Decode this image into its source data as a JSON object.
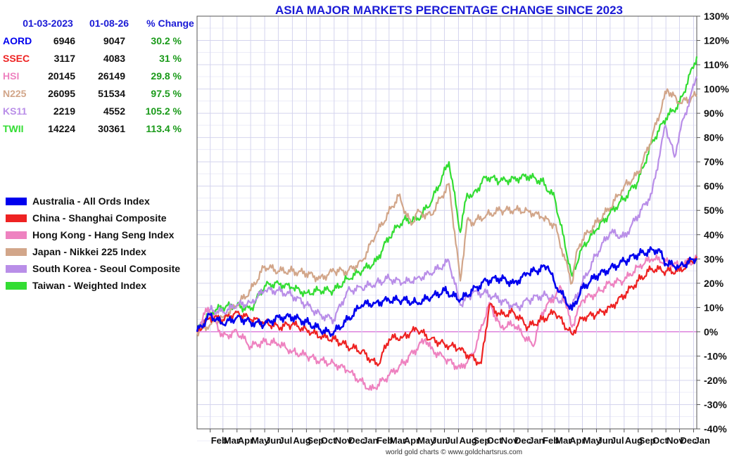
{
  "chart_data": {
    "type": "line",
    "title": "ASIA MAJOR MARKETS PERCENTAGE CHANGE SINCE 2023",
    "credit": "world gold charts © www.goldchartsrus.com",
    "xlabel": "",
    "ylabel": "",
    "ylim": [
      -40,
      130
    ],
    "y_ticks": [
      130,
      120,
      110,
      100,
      90,
      80,
      70,
      60,
      50,
      40,
      30,
      20,
      10,
      0,
      -10,
      -20,
      -30,
      -40
    ],
    "y_tick_labels": [
      "130%",
      "120%",
      "110%",
      "100%",
      "90%",
      "80%",
      "70%",
      "60%",
      "50%",
      "40%",
      "30%",
      "20%",
      "10%",
      "0%",
      "-10%",
      "-20%",
      "-30%",
      "-40%"
    ],
    "x_start": "2023-01-03",
    "x_end": "2026-01-08",
    "x_tick_labels": [
      "Feb",
      "Mar",
      "Apr",
      "May",
      "Jun",
      "Jul",
      "Aug",
      "Sep",
      "Oct",
      "Nov",
      "Dec",
      "Jan",
      "Feb",
      "Mar",
      "Apr",
      "May",
      "Jun",
      "Jul",
      "Aug",
      "Sep",
      "Oct",
      "Nov",
      "Dec",
      "Jan",
      "Feb",
      "Mar",
      "Apr",
      "May",
      "Jun",
      "Jul",
      "Aug",
      "Sep",
      "Oct",
      "Nov",
      "Dec",
      "Jan"
    ],
    "x_tick_dates": [
      "2023-02-01",
      "2023-03-01",
      "2023-04-01",
      "2023-05-01",
      "2023-06-01",
      "2023-07-01",
      "2023-08-01",
      "2023-09-01",
      "2023-10-01",
      "2023-11-01",
      "2023-12-01",
      "2024-01-01",
      "2024-02-01",
      "2024-03-01",
      "2024-04-01",
      "2024-05-01",
      "2024-06-01",
      "2024-07-01",
      "2024-08-01",
      "2024-09-01",
      "2024-10-01",
      "2024-11-01",
      "2024-12-01",
      "2025-01-01",
      "2025-02-01",
      "2025-03-01",
      "2025-04-01",
      "2025-05-01",
      "2025-06-01",
      "2025-07-01",
      "2025-08-01",
      "2025-09-01",
      "2025-10-01",
      "2025-11-01",
      "2025-12-01",
      "2026-01-01"
    ],
    "grid": true,
    "legend_position": "left",
    "table": {
      "headers": [
        "01-03-2023",
        "01-08-26",
        "% Change"
      ],
      "rows": [
        {
          "code": "AORD",
          "start": "6946",
          "end": "9047",
          "change": "30.2 %",
          "color": "#0000ee"
        },
        {
          "code": "SSEC",
          "start": "3117",
          "end": "4083",
          "change": "31 %",
          "color": "#ee2222"
        },
        {
          "code": "HSI",
          "start": "20145",
          "end": "26149",
          "change": "29.8 %",
          "color": "#ee82c0"
        },
        {
          "code": "N225",
          "start": "26095",
          "end": "51534",
          "change": "97.5 %",
          "color": "#d2a68a"
        },
        {
          "code": "KS11",
          "start": "2219",
          "end": "4552",
          "change": "105.2 %",
          "color": "#b98ee8"
        },
        {
          "code": "TWII",
          "start": "14224",
          "end": "30361",
          "change": "113.4 %",
          "color": "#33dd33"
        }
      ]
    },
    "series": [
      {
        "name": "Australia - All Ords Index",
        "color": "#0000ee",
        "x": [
          "2023-01-03",
          "2023-02-01",
          "2023-03-01",
          "2023-04-01",
          "2023-05-01",
          "2023-06-01",
          "2023-07-01",
          "2023-08-01",
          "2023-09-01",
          "2023-10-01",
          "2023-10-27",
          "2023-12-01",
          "2024-01-01",
          "2024-02-01",
          "2024-03-01",
          "2024-04-01",
          "2024-05-01",
          "2024-06-01",
          "2024-07-01",
          "2024-08-05",
          "2024-09-01",
          "2024-10-01",
          "2024-11-01",
          "2024-12-01",
          "2025-01-01",
          "2025-02-14",
          "2025-03-01",
          "2025-04-08",
          "2025-05-01",
          "2025-06-01",
          "2025-07-01",
          "2025-08-01",
          "2025-09-01",
          "2025-10-15",
          "2025-11-01",
          "2025-12-01",
          "2026-01-08"
        ],
        "values": [
          0,
          7,
          3,
          6,
          4,
          3,
          6,
          6,
          4,
          1,
          -1,
          5,
          11,
          12,
          13,
          13,
          12,
          14,
          17,
          13,
          17,
          21,
          22,
          20,
          24,
          27,
          20,
          9,
          18,
          23,
          26,
          29,
          32,
          34,
          28,
          27,
          30.2
        ]
      },
      {
        "name": "China - Shanghai Composite",
        "color": "#ee2222",
        "x": [
          "2023-01-03",
          "2023-02-01",
          "2023-03-01",
          "2023-04-01",
          "2023-05-01",
          "2023-06-01",
          "2023-07-01",
          "2023-08-01",
          "2023-09-01",
          "2023-10-01",
          "2023-11-01",
          "2023-12-01",
          "2024-01-01",
          "2024-02-05",
          "2024-03-01",
          "2024-04-01",
          "2024-05-01",
          "2024-06-01",
          "2024-07-01",
          "2024-08-01",
          "2024-09-20",
          "2024-10-08",
          "2024-11-01",
          "2024-12-01",
          "2025-01-01",
          "2025-02-01",
          "2025-03-01",
          "2025-04-08",
          "2025-05-01",
          "2025-06-01",
          "2025-07-01",
          "2025-08-01",
          "2025-09-01",
          "2025-10-01",
          "2025-11-01",
          "2025-12-01",
          "2026-01-08"
        ],
        "values": [
          0,
          6,
          5,
          8,
          5,
          4,
          2,
          3,
          1,
          -2,
          -3,
          -6,
          -8,
          -14,
          -3,
          -2,
          1,
          -3,
          -5,
          -7,
          -13,
          11,
          7,
          8,
          2,
          5,
          8,
          -1,
          6,
          7,
          10,
          15,
          21,
          26,
          25,
          25,
          31
        ]
      },
      {
        "name": "Hong Kong - Hang Seng Index",
        "color": "#ee82c0",
        "x": [
          "2023-01-03",
          "2023-01-27",
          "2023-03-01",
          "2023-04-01",
          "2023-05-01",
          "2023-06-01",
          "2023-07-01",
          "2023-08-01",
          "2023-09-01",
          "2023-10-01",
          "2023-11-01",
          "2023-12-01",
          "2024-01-22",
          "2024-03-01",
          "2024-04-01",
          "2024-05-20",
          "2024-06-01",
          "2024-07-01",
          "2024-08-05",
          "2024-09-01",
          "2024-10-08",
          "2024-11-01",
          "2024-12-01",
          "2025-01-13",
          "2025-02-01",
          "2025-03-15",
          "2025-04-08",
          "2025-05-01",
          "2025-06-01",
          "2025-07-01",
          "2025-08-01",
          "2025-09-01",
          "2025-10-01",
          "2025-11-01",
          "2025-12-01",
          "2026-01-08"
        ],
        "values": [
          0,
          10,
          -2,
          0,
          -6,
          -4,
          -5,
          -8,
          -10,
          -12,
          -13,
          -16,
          -24,
          -18,
          -13,
          -3,
          -7,
          -11,
          -15,
          -10,
          12,
          2,
          3,
          -6,
          8,
          18,
          2,
          13,
          16,
          20,
          21,
          27,
          30,
          29,
          27,
          29.8
        ]
      },
      {
        "name": "Japan - Nikkei 225 Index",
        "color": "#d2a68a",
        "x": [
          "2023-01-03",
          "2023-02-01",
          "2023-03-01",
          "2023-04-01",
          "2023-05-01",
          "2023-06-01",
          "2023-07-01",
          "2023-08-01",
          "2023-09-01",
          "2023-10-01",
          "2023-11-01",
          "2023-12-01",
          "2024-01-01",
          "2024-02-01",
          "2024-03-22",
          "2024-04-19",
          "2024-05-01",
          "2024-06-01",
          "2024-07-11",
          "2024-08-05",
          "2024-08-20",
          "2024-09-01",
          "2024-10-01",
          "2024-11-01",
          "2024-12-01",
          "2025-01-01",
          "2025-02-01",
          "2025-03-01",
          "2025-04-08",
          "2025-04-20",
          "2025-05-01",
          "2025-06-01",
          "2025-07-01",
          "2025-08-01",
          "2025-09-01",
          "2025-10-01",
          "2025-11-04",
          "2025-12-01",
          "2026-01-08"
        ],
        "values": [
          0,
          3,
          6,
          11,
          17,
          27,
          25,
          25,
          24,
          22,
          25,
          25,
          29,
          40,
          56,
          44,
          49,
          48,
          61,
          21,
          46,
          45,
          48,
          50,
          50,
          50,
          47,
          44,
          20,
          34,
          38,
          45,
          51,
          60,
          65,
          80,
          100,
          94,
          97.5
        ]
      },
      {
        "name": "South Korea - Seoul Composite",
        "color": "#b98ee8",
        "x": [
          "2023-01-03",
          "2023-02-01",
          "2023-03-01",
          "2023-04-01",
          "2023-05-01",
          "2023-06-01",
          "2023-07-01",
          "2023-08-01",
          "2023-09-01",
          "2023-10-01",
          "2023-10-31",
          "2023-12-01",
          "2024-01-01",
          "2024-02-01",
          "2024-03-01",
          "2024-04-01",
          "2024-05-01",
          "2024-06-01",
          "2024-07-11",
          "2024-08-05",
          "2024-09-01",
          "2024-10-01",
          "2024-11-01",
          "2024-12-09",
          "2025-01-01",
          "2025-02-01",
          "2025-03-01",
          "2025-04-09",
          "2025-05-01",
          "2025-06-01",
          "2025-07-01",
          "2025-08-01",
          "2025-09-01",
          "2025-10-01",
          "2025-10-31",
          "2025-11-20",
          "2025-12-01",
          "2026-01-08"
        ],
        "values": [
          0,
          9,
          8,
          11,
          12,
          17,
          17,
          15,
          11,
          7,
          5,
          17,
          18,
          20,
          22,
          20,
          22,
          24,
          29,
          11,
          16,
          16,
          13,
          10,
          13,
          15,
          14,
          11,
          20,
          32,
          41,
          39,
          48,
          57,
          85,
          72,
          82,
          105.2
        ]
      },
      {
        "name": "Taiwan - Weighted Index",
        "color": "#33dd33",
        "x": [
          "2023-01-03",
          "2023-02-01",
          "2023-03-01",
          "2023-04-01",
          "2023-05-01",
          "2023-06-01",
          "2023-07-01",
          "2023-08-01",
          "2023-09-01",
          "2023-10-01",
          "2023-11-01",
          "2023-12-01",
          "2024-01-01",
          "2024-02-01",
          "2024-03-01",
          "2024-04-01",
          "2024-05-01",
          "2024-06-01",
          "2024-07-11",
          "2024-08-05",
          "2024-08-20",
          "2024-09-01",
          "2024-10-01",
          "2024-11-01",
          "2024-12-01",
          "2025-01-01",
          "2025-02-01",
          "2025-03-01",
          "2025-04-08",
          "2025-05-01",
          "2025-06-01",
          "2025-07-01",
          "2025-08-01",
          "2025-09-01",
          "2025-10-01",
          "2025-11-01",
          "2025-12-01",
          "2026-01-08"
        ],
        "values": [
          0,
          8,
          10,
          11,
          9,
          19,
          20,
          18,
          16,
          17,
          17,
          22,
          25,
          29,
          39,
          46,
          46,
          53,
          70,
          41,
          57,
          56,
          64,
          62,
          63,
          64,
          62,
          55,
          23,
          35,
          42,
          49,
          55,
          62,
          78,
          88,
          94,
          113.4
        ]
      }
    ]
  }
}
